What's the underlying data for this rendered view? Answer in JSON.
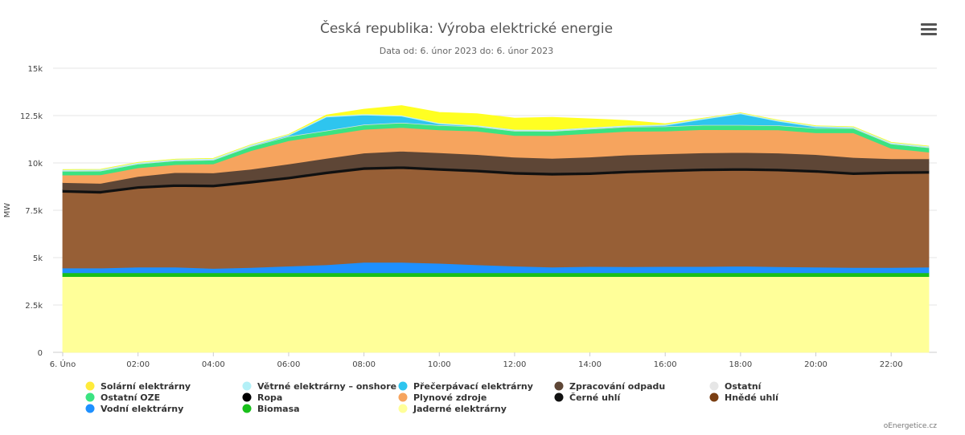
{
  "chart_data": {
    "type": "area",
    "stacked": true,
    "title": "Česká republika: Výroba elektrické energie",
    "subtitle": "Data od: 6. únor 2023 do: 6. únor 2023",
    "ylabel": "MW",
    "ylim": [
      0,
      15000
    ],
    "yticks": [
      "0",
      "2.5k",
      "5k",
      "7.5k",
      "10k",
      "12.5k",
      "15k"
    ],
    "ytick_values": [
      0,
      2500,
      5000,
      7500,
      10000,
      12500,
      15000
    ],
    "xlim": [
      0,
      23
    ],
    "x": [
      0,
      1,
      2,
      3,
      4,
      5,
      6,
      7,
      8,
      9,
      10,
      11,
      12,
      13,
      14,
      15,
      16,
      17,
      18,
      19,
      20,
      21,
      22,
      23
    ],
    "xticks": [
      "6. Úno",
      "02:00",
      "04:00",
      "06:00",
      "08:00",
      "10:00",
      "12:00",
      "14:00",
      "16:00",
      "18:00",
      "20:00",
      "22:00"
    ],
    "xtick_values": [
      0,
      2,
      4,
      6,
      8,
      10,
      12,
      14,
      16,
      18,
      20,
      22
    ],
    "legend_position": "bottom",
    "grid": true,
    "series": [
      {
        "name": "Jaderné elektrárny",
        "color": "#ffff99",
        "values": [
          4000,
          4000,
          4000,
          4000,
          4000,
          4000,
          4000,
          4000,
          4000,
          4000,
          4000,
          4000,
          4000,
          4000,
          4000,
          4000,
          4000,
          4000,
          4000,
          4000,
          4000,
          4000,
          4000,
          4000
        ]
      },
      {
        "name": "Biomasa",
        "color": "#19c01b",
        "values": [
          200,
          200,
          200,
          200,
          200,
          200,
          200,
          200,
          200,
          200,
          200,
          200,
          200,
          200,
          200,
          200,
          200,
          200,
          200,
          200,
          200,
          200,
          200,
          200
        ]
      },
      {
        "name": "Vodní elektrárny",
        "color": "#1e90ff",
        "values": [
          250,
          250,
          300,
          300,
          230,
          280,
          350,
          420,
          550,
          550,
          500,
          420,
          350,
          300,
          330,
          320,
          330,
          330,
          350,
          320,
          300,
          280,
          280,
          300
        ]
      },
      {
        "name": "Hnědé uhlí",
        "color": "#975f36",
        "values": [
          4000,
          3950,
          4150,
          4250,
          4300,
          4450,
          4600,
          4800,
          4900,
          4950,
          4900,
          4900,
          4850,
          4850,
          4850,
          4950,
          5000,
          5050,
          5050,
          5050,
          5000,
          4900,
          4950,
          4950
        ]
      },
      {
        "name": "Černé uhlí",
        "color": "#111111",
        "values": [
          120,
          120,
          120,
          120,
          120,
          120,
          120,
          120,
          120,
          120,
          120,
          120,
          120,
          120,
          120,
          120,
          120,
          120,
          120,
          120,
          120,
          120,
          120,
          120
        ]
      },
      {
        "name": "Ropa",
        "color": "#1a1a1a",
        "values": [
          20,
          20,
          20,
          20,
          20,
          20,
          20,
          20,
          20,
          20,
          20,
          20,
          20,
          20,
          20,
          20,
          20,
          20,
          20,
          20,
          20,
          20,
          20,
          20
        ]
      },
      {
        "name": "Zpracování odpadu",
        "color": "#5e4636",
        "values": [
          370,
          380,
          500,
          600,
          600,
          600,
          650,
          680,
          730,
          780,
          800,
          780,
          760,
          750,
          790,
          810,
          810,
          810,
          810,
          810,
          800,
          770,
          650,
          630
        ]
      },
      {
        "name": "Plynové zdroje",
        "color": "#f6a45e",
        "values": [
          400,
          450,
          450,
          420,
          480,
          980,
          1230,
          1220,
          1250,
          1250,
          1200,
          1240,
          1150,
          1200,
          1250,
          1250,
          1200,
          1230,
          1200,
          1220,
          1150,
          1300,
          550,
          350
        ]
      },
      {
        "name": "Ostatní OZE",
        "color": "#3be381",
        "values": [
          200,
          200,
          200,
          200,
          200,
          220,
          220,
          230,
          240,
          240,
          240,
          230,
          230,
          230,
          230,
          230,
          230,
          230,
          240,
          230,
          230,
          230,
          230,
          230
        ]
      },
      {
        "name": "Ostatní",
        "color": "#e0e0e0",
        "values": [
          30,
          30,
          30,
          30,
          30,
          30,
          30,
          30,
          30,
          30,
          30,
          30,
          30,
          30,
          30,
          30,
          30,
          30,
          30,
          30,
          30,
          30,
          30,
          30
        ]
      },
      {
        "name": "Přečerpávací elektrárny",
        "color": "#2ec5ef",
        "values": [
          0,
          0,
          0,
          0,
          0,
          0,
          30,
          700,
          490,
          330,
          50,
          0,
          0,
          0,
          0,
          0,
          40,
          280,
          570,
          200,
          50,
          0,
          0,
          0
        ]
      },
      {
        "name": "Větrné elektrárny – onshore",
        "color": "#bff0f5",
        "values": [
          60,
          60,
          60,
          60,
          60,
          60,
          60,
          60,
          60,
          60,
          60,
          60,
          60,
          60,
          60,
          60,
          60,
          60,
          60,
          60,
          60,
          60,
          60,
          60
        ]
      },
      {
        "name": "Solární elektrárny",
        "color": "#ffff22",
        "values": [
          0,
          0,
          0,
          0,
          0,
          0,
          0,
          50,
          250,
          500,
          550,
          600,
          600,
          650,
          450,
          250,
          30,
          0,
          0,
          0,
          0,
          0,
          0,
          0
        ]
      }
    ],
    "legend_order": [
      "Solární elektrárny",
      "Větrné elektrárny – onshore",
      "Přečerpávací elektrárny",
      "Zpracování odpadu",
      "Ostatní",
      "Ostatní OZE",
      "Ropa",
      "Plynové zdroje",
      "Černé uhlí",
      "Hnědé uhlí",
      "Vodní elektrárny",
      "Biomasa",
      "Jaderné elektrárny"
    ],
    "legend_colors": [
      "#ffeb3b",
      "#b3f0f7",
      "#2ec5ef",
      "#5e4636",
      "#e6e6e6",
      "#3be381",
      "#000000",
      "#f6a45e",
      "#111111",
      "#7a3e12",
      "#1e90ff",
      "#19c01b",
      "#ffff99"
    ]
  },
  "credit": "oEnergetice.cz",
  "menu_icon": "hamburger-menu-icon"
}
